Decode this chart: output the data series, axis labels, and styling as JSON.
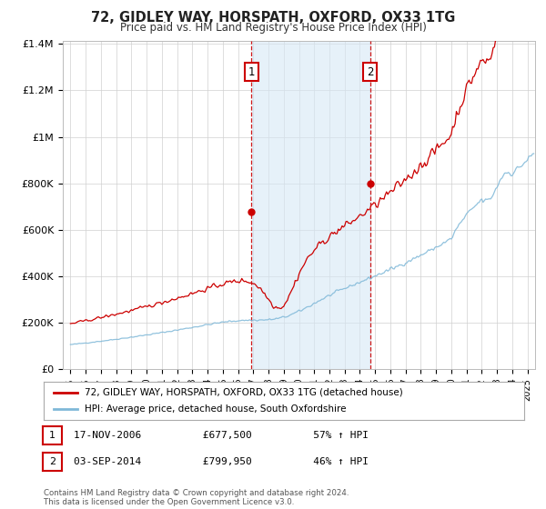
{
  "title": "72, GIDLEY WAY, HORSPATH, OXFORD, OX33 1TG",
  "subtitle": "Price paid vs. HM Land Registry's House Price Index (HPI)",
  "legend_line1": "72, GIDLEY WAY, HORSPATH, OXFORD, OX33 1TG (detached house)",
  "legend_line2": "HPI: Average price, detached house, South Oxfordshire",
  "annotation1_label": "1",
  "annotation1_date": "17-NOV-2006",
  "annotation1_price": "£677,500",
  "annotation1_hpi": "57% ↑ HPI",
  "annotation1_year": 2006.88,
  "annotation1_value": 677500,
  "annotation2_label": "2",
  "annotation2_date": "03-SEP-2014",
  "annotation2_price": "£799,950",
  "annotation2_hpi": "46% ↑ HPI",
  "annotation2_year": 2014.67,
  "annotation2_value": 799950,
  "hpi_color": "#7fb8d8",
  "price_color": "#cc0000",
  "annotation_box_color": "#cc0000",
  "vline_color": "#cc0000",
  "shade_color": "#d6e8f5",
  "ylim": [
    0,
    1400000
  ],
  "yticks": [
    0,
    200000,
    400000,
    600000,
    800000,
    1000000,
    1200000,
    1400000
  ],
  "ytick_labels": [
    "£0",
    "£200K",
    "£400K",
    "£600K",
    "£800K",
    "£1M",
    "£1.2M",
    "£1.4M"
  ],
  "xmin": 1994.5,
  "xmax": 2025.5,
  "footnote": "Contains HM Land Registry data © Crown copyright and database right 2024.\nThis data is licensed under the Open Government Licence v3.0.",
  "background_color": "#ffffff",
  "plot_bg_color": "#ffffff"
}
